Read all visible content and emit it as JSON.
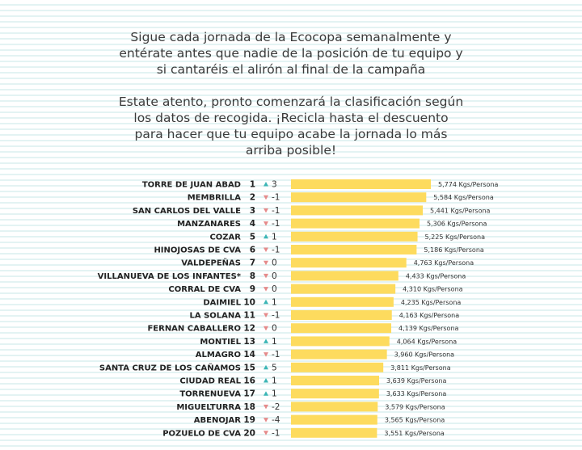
{
  "intro": {
    "paragraph1": "Sigue cada jornada de la Ecocopa semanalmente y\nentérate antes que nadie de la posición de tu equipo y\nsi cantaréis el alirón al final de la campaña",
    "paragraph2": "Estate atento, pronto comenzará la clasificación según\nlos datos de recogida. ¡Recicla hasta el descuento\npara hacer que tu equipo acabe la jornada lo más\narriba posible!"
  },
  "colors": {
    "bar": "#fddb5e",
    "up": "#3cb6b6",
    "down": "#e58a8a"
  },
  "value_unit": "Kgs/Persona",
  "chart_data": {
    "type": "bar",
    "orientation": "horizontal",
    "categories": [
      "TORRE DE JUAN ABAD",
      "MEMBRILLA",
      "SAN CARLOS DEL VALLE",
      "MANZANARES",
      "COZAR",
      "HINOJOSAS DE CVA",
      "VALDEPEÑAS",
      "VILLANUEVA DE LOS INFANTES*",
      "CORRAL DE CVA",
      "DAIMIEL",
      "LA SOLANA",
      "FERNAN CABALLERO",
      "MONTIEL",
      "ALMAGRO",
      "SANTA CRUZ DE LOS CAÑAMOS",
      "CIUDAD REAL",
      "TORRENUEVA",
      "MIGUELTURRA",
      "ABENOJAR",
      "POZUELO DE CVA"
    ],
    "ranks": [
      1,
      2,
      3,
      4,
      5,
      6,
      7,
      8,
      9,
      10,
      11,
      12,
      13,
      14,
      15,
      16,
      17,
      18,
      19,
      20
    ],
    "changes": [
      3,
      -1,
      -1,
      -1,
      1,
      -1,
      0,
      0,
      0,
      1,
      -1,
      0,
      1,
      -1,
      5,
      1,
      1,
      -2,
      -4,
      -1
    ],
    "values": [
      5.774,
      5.584,
      5.441,
      5.306,
      5.225,
      5.186,
      4.763,
      4.433,
      4.31,
      4.235,
      4.163,
      4.139,
      4.064,
      3.96,
      3.811,
      3.639,
      3.633,
      3.579,
      3.565,
      3.551
    ],
    "labels": [
      "5,774 Kgs/Persona",
      "5,584 Kgs/Persona",
      "5,441 Kgs/Persona",
      "5,306 Kgs/Persona",
      "5,225 Kgs/Persona",
      "5,186 Kgs/Persona",
      "4,763 Kgs/Persona",
      "4,433 Kgs/Persona",
      "4,310 Kgs/Persona",
      "4,235 Kgs/Persona",
      "4,163 Kgs/Persona",
      "4,139 Kgs/Persona",
      "4,064 Kgs/Persona",
      "3,960 Kgs/Persona",
      "3,811 Kgs/Persona",
      "3,639 Kgs/Persona",
      "3,633 Kgs/Persona",
      "3,579 Kgs/Persona",
      "3,565 Kgs/Persona",
      "3,551 Kgs/Persona"
    ],
    "xlim": [
      0,
      5.774
    ],
    "grid": false,
    "legend": "none"
  }
}
